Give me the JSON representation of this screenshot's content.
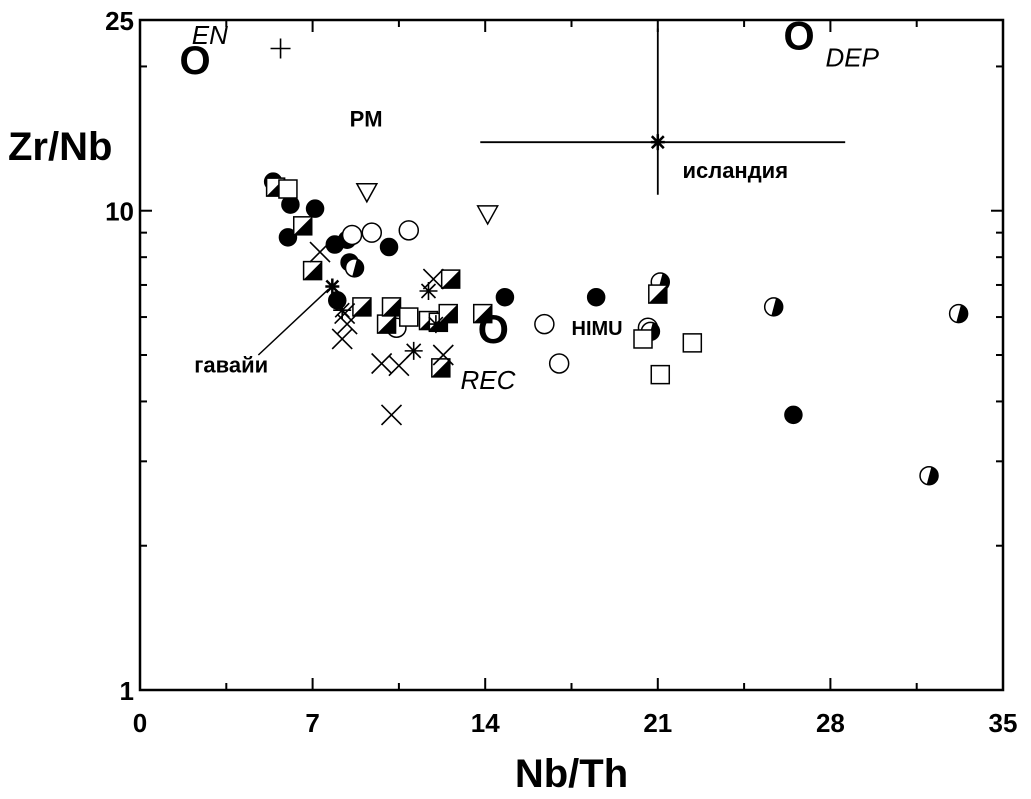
{
  "chart_data": {
    "type": "scatter",
    "xlabel": "Nb/Th",
    "ylabel": "Zr/Nb",
    "xlim": [
      0,
      35
    ],
    "ylim": [
      1,
      25
    ],
    "y_scale": "log",
    "grid": false,
    "x_ticks": [
      "0",
      "7",
      "14",
      "21",
      "28",
      "35"
    ],
    "y_ticks": [
      "1",
      "10",
      "25"
    ],
    "annotations": [
      {
        "text": "EN",
        "x": 2.1,
        "y": 22.3,
        "style": "italic"
      },
      {
        "text": "O",
        "x": 1.6,
        "y": 19.3,
        "style": "bold"
      },
      {
        "text": "PM",
        "x": 8.5,
        "y": 15.0,
        "style": "bold"
      },
      {
        "text": "O",
        "x": 26.1,
        "y": 21.7,
        "style": "bold"
      },
      {
        "text": "DEP",
        "x": 27.8,
        "y": 20.0,
        "style": "italic"
      },
      {
        "text": "O",
        "x": 13.7,
        "y": 5.3,
        "style": "bold"
      },
      {
        "text": "REC",
        "x": 13.0,
        "y": 4.25,
        "style": "italic"
      },
      {
        "text": "HIMU",
        "x": 17.5,
        "y": 5.5,
        "style": "bold"
      },
      {
        "text": "исландия",
        "x": 22.0,
        "y": 11.7,
        "style": "bold"
      },
      {
        "text": "гавайи",
        "x": 2.2,
        "y": 4.6,
        "style": "bold"
      }
    ],
    "references": [
      {
        "name": "iceland",
        "x": 21.0,
        "y": 13.9,
        "x_err": [
          13.8,
          28.6
        ],
        "y_err": [
          10.8,
          24.0
        ],
        "marker": "star"
      },
      {
        "name": "hawaii",
        "x": 7.8,
        "y": 6.95,
        "marker": "star",
        "leader_to": [
          4.8,
          5.0
        ]
      }
    ],
    "series": [
      {
        "marker": "filled-circle",
        "points": [
          {
            "x": 5.4,
            "y": 11.5
          },
          {
            "x": 6.1,
            "y": 10.3
          },
          {
            "x": 7.1,
            "y": 10.1
          },
          {
            "x": 6.0,
            "y": 8.8
          },
          {
            "x": 7.9,
            "y": 8.5
          },
          {
            "x": 8.4,
            "y": 8.7
          },
          {
            "x": 10.1,
            "y": 8.4
          },
          {
            "x": 8.5,
            "y": 7.8
          },
          {
            "x": 8.0,
            "y": 6.5
          },
          {
            "x": 14.8,
            "y": 6.6
          },
          {
            "x": 18.5,
            "y": 6.6
          },
          {
            "x": 26.5,
            "y": 3.75
          }
        ]
      },
      {
        "marker": "open-circle",
        "points": [
          {
            "x": 9.4,
            "y": 9.0
          },
          {
            "x": 10.9,
            "y": 9.1
          },
          {
            "x": 8.6,
            "y": 8.9
          },
          {
            "x": 10.4,
            "y": 5.7
          },
          {
            "x": 16.4,
            "y": 5.8
          },
          {
            "x": 17.0,
            "y": 4.8
          },
          {
            "x": 20.6,
            "y": 5.7
          }
        ]
      },
      {
        "marker": "half-filled-circle",
        "points": [
          {
            "x": 21.1,
            "y": 7.1
          },
          {
            "x": 20.7,
            "y": 5.6
          },
          {
            "x": 25.7,
            "y": 6.3
          },
          {
            "x": 33.2,
            "y": 6.1
          },
          {
            "x": 32.0,
            "y": 2.8
          },
          {
            "x": 8.7,
            "y": 7.6
          }
        ]
      },
      {
        "marker": "half-filled-square",
        "points": [
          {
            "x": 5.5,
            "y": 11.2
          },
          {
            "x": 6.6,
            "y": 9.3
          },
          {
            "x": 7.0,
            "y": 7.5
          },
          {
            "x": 9.0,
            "y": 6.3
          },
          {
            "x": 10.0,
            "y": 5.8
          },
          {
            "x": 10.2,
            "y": 6.3
          },
          {
            "x": 11.7,
            "y": 5.9
          },
          {
            "x": 12.1,
            "y": 5.85
          },
          {
            "x": 12.5,
            "y": 6.1
          },
          {
            "x": 12.6,
            "y": 7.2
          },
          {
            "x": 13.9,
            "y": 6.1
          },
          {
            "x": 12.2,
            "y": 4.7
          },
          {
            "x": 21.0,
            "y": 6.7
          }
        ]
      },
      {
        "marker": "open-square",
        "points": [
          {
            "x": 6.0,
            "y": 11.1
          },
          {
            "x": 10.9,
            "y": 6.0
          },
          {
            "x": 20.4,
            "y": 5.4
          },
          {
            "x": 22.4,
            "y": 5.3
          },
          {
            "x": 21.1,
            "y": 4.55
          }
        ]
      },
      {
        "marker": "open-triangle-down",
        "points": [
          {
            "x": 9.2,
            "y": 10.9
          },
          {
            "x": 14.1,
            "y": 9.8
          }
        ]
      },
      {
        "marker": "x-cross",
        "points": [
          {
            "x": 7.3,
            "y": 8.2
          },
          {
            "x": 8.3,
            "y": 6.1
          },
          {
            "x": 8.4,
            "y": 5.8
          },
          {
            "x": 8.2,
            "y": 5.4
          },
          {
            "x": 9.8,
            "y": 4.8
          },
          {
            "x": 10.5,
            "y": 4.75
          },
          {
            "x": 12.3,
            "y": 5.0
          },
          {
            "x": 10.2,
            "y": 3.75
          },
          {
            "x": 11.9,
            "y": 7.2
          }
        ]
      },
      {
        "marker": "asterisk",
        "points": [
          {
            "x": 8.2,
            "y": 6.2
          },
          {
            "x": 11.7,
            "y": 6.8
          },
          {
            "x": 11.1,
            "y": 5.1
          },
          {
            "x": 12.0,
            "y": 5.8
          }
        ]
      },
      {
        "marker": "plus",
        "points": [
          {
            "x": 5.7,
            "y": 21.8
          }
        ]
      }
    ]
  }
}
